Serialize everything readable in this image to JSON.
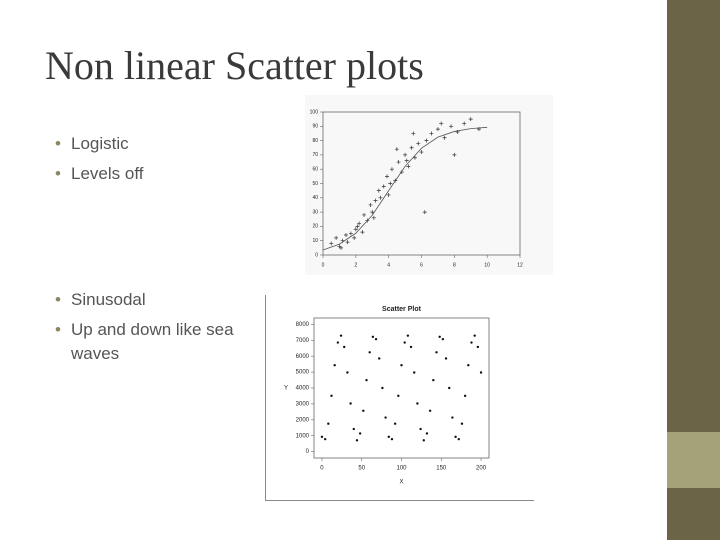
{
  "title": "Non linear Scatter plots",
  "bullets_top": [
    "Logistic",
    "Levels off"
  ],
  "bullets_bottom": [
    "Sinusodal",
    "Up and down like sea waves"
  ],
  "chart_data": [
    {
      "type": "scatter",
      "xlim": [
        0,
        12
      ],
      "ylim": [
        0,
        100
      ],
      "xticks": [
        0,
        2,
        4,
        6,
        8,
        10,
        12
      ],
      "yticks": [
        0,
        10,
        20,
        30,
        40,
        50,
        60,
        70,
        80,
        90,
        100
      ],
      "series": [
        {
          "color": "#333333",
          "marker": "+",
          "x": [
            0.5,
            0.8,
            1,
            1.2,
            1.4,
            1.5,
            1.7,
            1.9,
            2,
            2.2,
            2.4,
            2.5,
            2.7,
            2.9,
            3,
            3.2,
            3.4,
            3.5,
            3.7,
            3.9,
            4,
            4.2,
            4.4,
            4.6,
            4.8,
            5,
            5.2,
            5.4,
            5.6,
            5.8,
            6,
            6.3,
            6.6,
            7,
            7.4,
            7.8,
            8.2,
            8.6,
            9,
            9.5,
            1.1,
            2.1,
            3.1,
            4.1,
            5.1,
            6.2,
            7.2,
            5.5,
            4.5,
            8
          ],
          "values": [
            8,
            12,
            6,
            10,
            14,
            9,
            15,
            12,
            18,
            22,
            16,
            28,
            24,
            35,
            30,
            38,
            45,
            40,
            48,
            55,
            42,
            60,
            52,
            65,
            58,
            70,
            62,
            75,
            68,
            78,
            72,
            80,
            85,
            88,
            82,
            90,
            86,
            92,
            95,
            88,
            5,
            20,
            26,
            50,
            66,
            30,
            92,
            85,
            74,
            70
          ]
        },
        {
          "color": "#555555",
          "line": true,
          "x": [
            0,
            1,
            2,
            3,
            4,
            5,
            6,
            7,
            8,
            9,
            10
          ],
          "values": [
            3.5,
            7.6,
            15.2,
            27.8,
            45,
            62,
            74.7,
            82.4,
            86.4,
            88.4,
            89.3
          ]
        }
      ]
    },
    {
      "type": "scatter",
      "title": "Scatter Plot",
      "x_label": "X",
      "y_label": "Y",
      "xlim": [
        -10,
        210
      ],
      "ylim": [
        -400,
        8400
      ],
      "xticks": [
        0,
        50,
        100,
        150,
        200
      ],
      "yticks": [
        0,
        1000,
        2000,
        3000,
        4000,
        5000,
        6000,
        7000,
        8000
      ],
      "series": [
        {
          "color": "#111111",
          "marker": "dot",
          "x": [
            0,
            4,
            8,
            12,
            16,
            20,
            24,
            28,
            32,
            36,
            40,
            44,
            48,
            52,
            56,
            60,
            64,
            68,
            72,
            76,
            80,
            84,
            88,
            92,
            96,
            100,
            104,
            108,
            112,
            116,
            120,
            124,
            128,
            132,
            136,
            140,
            144,
            148,
            152,
            156,
            160,
            164,
            168,
            172,
            176,
            180,
            184,
            188,
            192,
            196,
            200
          ],
          "values": [
            931,
            783,
            1756,
            3508,
            5432,
            6858,
            7290,
            6581,
            4974,
            3026,
            1419,
            710,
            1142,
            2568,
            4492,
            6244,
            7217,
            7069,
            5858,
            4000,
            2142,
            931,
            783,
            1756,
            3508,
            5432,
            6858,
            7290,
            6581,
            4974,
            3026,
            1419,
            710,
            1142,
            2568,
            4492,
            6244,
            7217,
            7069,
            5858,
            4000,
            2142,
            931,
            783,
            1756,
            3508,
            5432,
            6858,
            7290,
            6581,
            4974
          ]
        }
      ]
    }
  ]
}
